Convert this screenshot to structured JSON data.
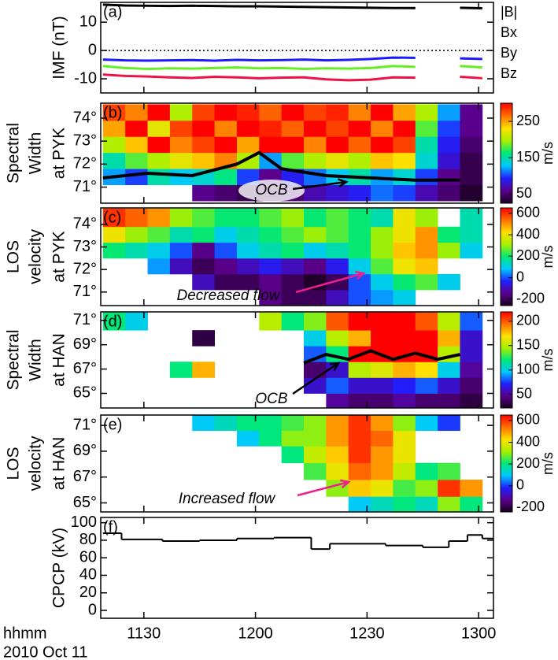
{
  "chart_data": [
    {
      "type": "line",
      "panel_label": "(a)",
      "ylabel": "IMF (nT)",
      "xlim": [
        678.4,
        784
      ],
      "xticks": [
        690,
        720,
        750,
        780
      ],
      "ylim": [
        -15,
        17
      ],
      "yticks": [
        -10,
        0,
        10
      ],
      "zero_line": true,
      "x": [
        679,
        685,
        691,
        697,
        703,
        709,
        715,
        721,
        727,
        733,
        739,
        745,
        751,
        757,
        763,
        769,
        775,
        781
      ],
      "series": [
        {
          "name": "|B|",
          "color": "#000000",
          "values": [
            16.2,
            15.9,
            15.8,
            15.7,
            15.8,
            15.7,
            15.6,
            15.6,
            15.5,
            15.4,
            15.3,
            15.2,
            15.1,
            15.0,
            15.0,
            null,
            15.1,
            14.9
          ]
        },
        {
          "name": "Bx",
          "color": "#1a1aff",
          "values": [
            -3.2,
            -3.5,
            -3.6,
            -3.5,
            -3.4,
            -3.6,
            -3.3,
            -3.5,
            -3.4,
            -3.2,
            -3.5,
            -3.3,
            -3.0,
            -2.5,
            -2.6,
            null,
            -2.8,
            -3.0
          ]
        },
        {
          "name": "By",
          "color": "#66ee22",
          "values": [
            -5.5,
            -6.2,
            -6.5,
            -6.3,
            -6.4,
            -6.2,
            -6.0,
            -6.3,
            -6.2,
            -6.5,
            -6.3,
            -6.4,
            -6.2,
            -5.5,
            -5.8,
            null,
            -5.5,
            -6.0
          ]
        },
        {
          "name": "Bz",
          "color": "#ee1144",
          "values": [
            -8.5,
            -9.0,
            -9.2,
            -9.5,
            -9.7,
            -9.3,
            -9.5,
            -9.8,
            -9.6,
            -9.5,
            -10.2,
            -10.5,
            -10.3,
            -9.5,
            -9.6,
            null,
            -9.3,
            -9.8
          ]
        }
      ]
    },
    {
      "type": "heatmap",
      "panel_label": "(b)",
      "ylabel": [
        "Spectral",
        "Width",
        "at PYK"
      ],
      "xlim": [
        678.4,
        784
      ],
      "xticks": [
        690,
        720,
        750,
        780
      ],
      "ylim": [
        70.3,
        74.65
      ],
      "yticks": [
        {
          "value": 71,
          "label": "71°"
        },
        {
          "value": 72,
          "label": "72°"
        },
        {
          "value": 73,
          "label": "73°"
        },
        {
          "value": 74,
          "label": "74°"
        }
      ],
      "x_bins": [
        679,
        685,
        691,
        697,
        703,
        709,
        715,
        721,
        727,
        733,
        739,
        745,
        751,
        757,
        763,
        769,
        775,
        781
      ],
      "y_bins": [
        70.4,
        71.1,
        71.8,
        72.5,
        73.2,
        73.9,
        74.6
      ],
      "z": [
        [
          null,
          null,
          null,
          null,
          60,
          50,
          40,
          40,
          50,
          70,
          80,
          90,
          110,
          100,
          70,
          50,
          30
        ],
        [
          120,
          100,
          150,
          130,
          140,
          160,
          100,
          60,
          90,
          110,
          130,
          150,
          120,
          140,
          100,
          60,
          40
        ],
        [
          150,
          180,
          200,
          220,
          240,
          260,
          200,
          120,
          180,
          200,
          220,
          200,
          240,
          230,
          140,
          80,
          40
        ],
        [
          200,
          240,
          300,
          260,
          280,
          300,
          250,
          300,
          300,
          260,
          300,
          270,
          300,
          280,
          150,
          90,
          50
        ],
        [
          250,
          300,
          220,
          280,
          300,
          260,
          300,
          290,
          270,
          300,
          280,
          300,
          260,
          300,
          180,
          100,
          60
        ],
        [
          280,
          260,
          300,
          200,
          280,
          300,
          290,
          270,
          300,
          280,
          290,
          260,
          300,
          250,
          200,
          120,
          60
        ]
      ],
      "zlim": [
        25,
        300
      ],
      "zticks": [
        50,
        150,
        250
      ],
      "colorbar_label": "m/s",
      "colormap": [
        "#1a0020",
        "#5a008c",
        "#2020ff",
        "#00c8ff",
        "#00e878",
        "#a8f000",
        "#ffe000",
        "#ff7000",
        "#ff0000"
      ],
      "boundary_x": [
        679,
        691,
        703,
        715,
        721,
        727,
        739,
        751,
        763,
        775
      ],
      "boundary_values": [
        71.4,
        71.6,
        71.5,
        72.0,
        72.5,
        71.8,
        71.5,
        71.4,
        71.3,
        71.3
      ],
      "annotation": {
        "text": "OCB",
        "color": "#000000"
      }
    },
    {
      "type": "heatmap",
      "panel_label": "(c)",
      "ylabel": [
        "LOS",
        "velocity",
        "at PYK"
      ],
      "xlim": [
        678.4,
        784
      ],
      "xticks": [
        690,
        720,
        750,
        780
      ],
      "ylim": [
        70.4,
        74.73
      ],
      "yticks": [
        {
          "value": 71,
          "label": "71°"
        },
        {
          "value": 72,
          "label": "72°"
        },
        {
          "value": 73,
          "label": "73°"
        },
        {
          "value": 74,
          "label": "74°"
        }
      ],
      "x_bins": [
        679,
        685,
        691,
        697,
        703,
        709,
        715,
        721,
        727,
        733,
        739,
        745,
        751,
        757,
        763,
        769,
        775,
        781
      ],
      "y_bins": [
        70.4,
        71.1,
        71.8,
        72.5,
        73.2,
        73.9,
        74.7
      ],
      "z": [
        [
          null,
          null,
          null,
          null,
          null,
          null,
          null,
          -150,
          -200,
          -200,
          -100,
          0,
          50,
          100,
          null,
          null,
          null
        ],
        [
          null,
          null,
          null,
          null,
          -100,
          -200,
          -200,
          -150,
          -200,
          -250,
          -200,
          0,
          100,
          200,
          250,
          100,
          null
        ],
        [
          null,
          null,
          50,
          -100,
          -200,
          -150,
          -100,
          -50,
          -100,
          -150,
          -50,
          100,
          250,
          400,
          450,
          null,
          null
        ],
        [
          200,
          150,
          100,
          0,
          -150,
          0,
          100,
          150,
          200,
          100,
          150,
          200,
          300,
          450,
          500,
          300,
          100
        ],
        [
          400,
          300,
          250,
          150,
          200,
          100,
          150,
          200,
          250,
          300,
          250,
          200,
          300,
          400,
          500,
          200,
          150
        ],
        [
          600,
          550,
          500,
          300,
          250,
          200,
          200,
          250,
          300,
          200,
          250,
          200,
          150,
          400,
          300,
          null,
          150
        ]
      ],
      "zlim": [
        -260,
        650
      ],
      "zticks": [
        -200,
        0,
        200,
        400,
        600
      ],
      "colorbar_label": "m/s",
      "colormap": [
        "#1a0020",
        "#5a008c",
        "#2020ff",
        "#00c8ff",
        "#00e878",
        "#a8f000",
        "#ffe000",
        "#ff7000",
        "#ff0000"
      ],
      "annotation": {
        "text": "Decreased flow",
        "color": "#ee1e8c"
      }
    },
    {
      "type": "heatmap",
      "panel_label": "(d)",
      "ylabel": [
        "Spectral",
        "Width",
        "at HAN"
      ],
      "xlim": [
        678.4,
        784
      ],
      "xticks": [
        690,
        720,
        750,
        780
      ],
      "ylim": [
        63.8,
        71.7
      ],
      "yticks": [
        {
          "value": 65,
          "label": "65°"
        },
        {
          "value": 67,
          "label": "67°"
        },
        {
          "value": 69,
          "label": "69°"
        },
        {
          "value": 71,
          "label": "71°"
        }
      ],
      "x_bins": [
        679,
        685,
        691,
        697,
        703,
        709,
        715,
        721,
        727,
        733,
        739,
        745,
        751,
        757,
        763,
        769,
        775,
        781
      ],
      "y_bins": [
        63.8,
        65,
        66.3,
        67.6,
        68.9,
        70.2,
        71.7
      ],
      "z": [
        [
          null,
          null,
          null,
          null,
          null,
          null,
          null,
          null,
          null,
          null,
          50,
          40,
          40,
          50,
          40,
          40,
          30
        ],
        [
          null,
          null,
          null,
          null,
          null,
          null,
          null,
          null,
          null,
          60,
          80,
          60,
          60,
          70,
          80,
          60,
          40
        ],
        [
          null,
          null,
          null,
          120,
          180,
          null,
          null,
          null,
          null,
          40,
          60,
          150,
          160,
          180,
          170,
          100,
          50
        ],
        [
          null,
          null,
          null,
          null,
          null,
          null,
          null,
          null,
          null,
          80,
          120,
          220,
          220,
          220,
          220,
          150,
          60
        ],
        [
          null,
          null,
          null,
          null,
          30,
          null,
          null,
          null,
          null,
          100,
          150,
          180,
          220,
          220,
          220,
          180,
          60
        ],
        [
          120,
          100,
          null,
          null,
          null,
          null,
          null,
          150,
          120,
          140,
          200,
          220,
          220,
          220,
          200,
          150,
          80
        ]
      ],
      "zlim": [
        22,
        219
      ],
      "zticks": [
        50,
        100,
        150,
        200
      ],
      "colorbar_label": "m/s",
      "colormap": [
        "#1a0020",
        "#5a008c",
        "#2020ff",
        "#00c8ff",
        "#00e878",
        "#a8f000",
        "#ffe000",
        "#ff7000",
        "#ff0000"
      ],
      "boundary_x": [
        733,
        739,
        745,
        751,
        757,
        763,
        769,
        775
      ],
      "boundary_values": [
        67.5,
        68.2,
        67.8,
        68.5,
        67.8,
        68.3,
        67.8,
        68.2
      ],
      "annotation": {
        "text": "OCB",
        "color": "#000000"
      }
    },
    {
      "type": "heatmap",
      "panel_label": "(e)",
      "ylabel": [
        "LOS",
        "velocity",
        "at HAN"
      ],
      "xlim": [
        678.4,
        784
      ],
      "xticks": [
        690,
        720,
        750,
        780
      ],
      "ylim": [
        64.3,
        71.8
      ],
      "yticks": [
        {
          "value": 65,
          "label": "65°"
        },
        {
          "value": 67,
          "label": "67°"
        },
        {
          "value": 69,
          "label": "69°"
        },
        {
          "value": 71,
          "label": "71°"
        }
      ],
      "x_bins": [
        679,
        685,
        691,
        697,
        703,
        709,
        715,
        721,
        727,
        733,
        739,
        745,
        751,
        757,
        763,
        769,
        775,
        781
      ],
      "y_bins": [
        64.3,
        65.5,
        66.8,
        68.1,
        69.4,
        70.6,
        71.8
      ],
      "z": [
        [
          null,
          null,
          null,
          null,
          null,
          null,
          null,
          null,
          null,
          null,
          null,
          100,
          150,
          200,
          150,
          300,
          200
        ],
        [
          null,
          null,
          null,
          null,
          null,
          null,
          null,
          null,
          null,
          null,
          300,
          450,
          400,
          250,
          300,
          600,
          500
        ],
        [
          null,
          null,
          null,
          null,
          null,
          null,
          null,
          null,
          null,
          250,
          400,
          550,
          500,
          350,
          200,
          250,
          null
        ],
        [
          null,
          null,
          null,
          null,
          null,
          null,
          null,
          null,
          200,
          350,
          450,
          600,
          500,
          400,
          null,
          null,
          null
        ],
        [
          null,
          null,
          null,
          null,
          null,
          null,
          100,
          200,
          300,
          300,
          500,
          600,
          550,
          400,
          null,
          null,
          null
        ],
        [
          null,
          null,
          null,
          null,
          100,
          150,
          200,
          200,
          250,
          300,
          500,
          600,
          500,
          300,
          100,
          0,
          null
        ]
      ],
      "zlim": [
        -240,
        650
      ],
      "zticks": [
        -200,
        0,
        200,
        400,
        600
      ],
      "colorbar_label": "m/s",
      "colormap": [
        "#1a0020",
        "#5a008c",
        "#2020ff",
        "#00c8ff",
        "#00e878",
        "#a8f000",
        "#ffe000",
        "#ff7000",
        "#ff0000"
      ],
      "annotation": {
        "text": "Increased flow",
        "color": "#ee1e8c"
      }
    },
    {
      "type": "step",
      "panel_label": "(f)",
      "ylabel": "CPCP (kV)",
      "xlabel": "hhmm",
      "date_label": "2010 Oct 11",
      "xlim": [
        678.4,
        784
      ],
      "xticks": [
        {
          "value": 690,
          "label": "1130"
        },
        {
          "value": 720,
          "label": "1200"
        },
        {
          "value": 750,
          "label": "1230"
        },
        {
          "value": 780,
          "label": "1300"
        }
      ],
      "ylim": [
        -9,
        106
      ],
      "yticks": [
        0,
        20,
        40,
        60,
        80,
        100
      ],
      "x": [
        679,
        684,
        695,
        705,
        715,
        725,
        735,
        740,
        755,
        765,
        772,
        777,
        781
      ],
      "values": [
        88,
        81,
        79,
        80,
        82,
        83,
        70,
        76,
        74,
        72,
        79,
        86,
        82
      ],
      "color": "#000000"
    }
  ]
}
